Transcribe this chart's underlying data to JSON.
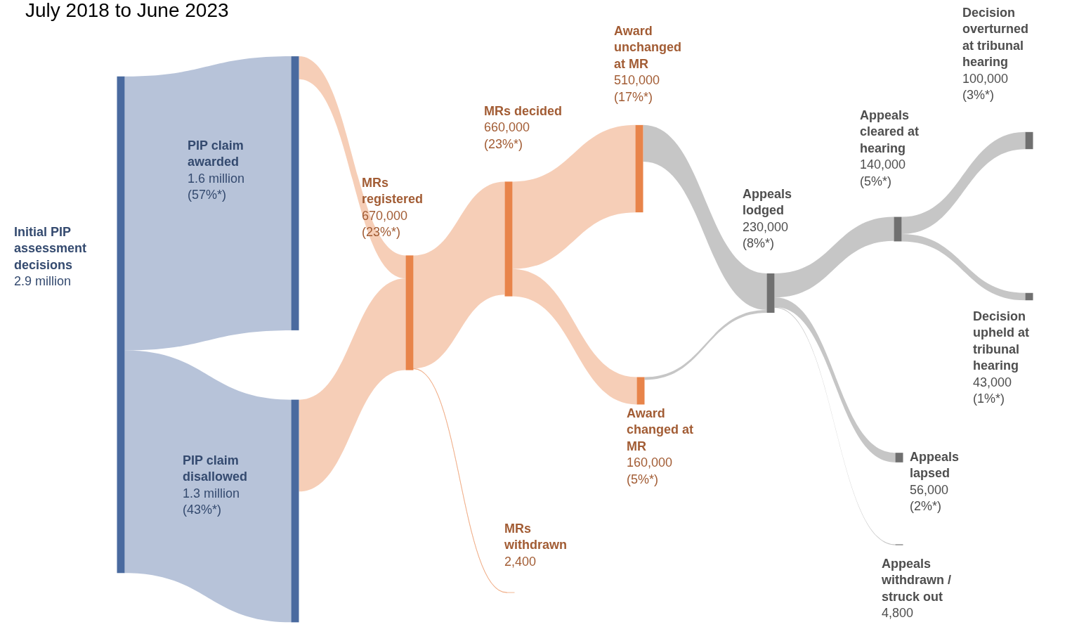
{
  "chart_data": {
    "type": "other",
    "title": "July 2018 to June 2023",
    "categories": [
      "Initial PIP assessment decisions",
      "PIP claim awarded",
      "PIP claim disallowed",
      "MRs registered",
      "MRs decided",
      "MRs withdrawn",
      "Award unchanged at MR",
      "Award changed at MR",
      "Appeals lodged",
      "Appeals cleared at hearing",
      "Appeals lapsed",
      "Appeals withdrawn / struck out",
      "Decision overturned at tribunal hearing",
      "Decision upheld at tribunal hearing"
    ],
    "values": [
      2900000,
      1600000,
      1300000,
      670000,
      660000,
      2400,
      510000,
      160000,
      230000,
      140000,
      56000,
      4800,
      100000,
      43000
    ],
    "value_labels": [
      "2.9 million",
      "1.6 million (57%*)",
      "1.3 million (43%*)",
      "670,000 (23%*)",
      "660,000 (23%*)",
      "2,400",
      "510,000 (17%*)",
      "160,000 (5%*)",
      "230,000 (8%*)",
      "140,000 (5%*)",
      "56,000 (2%*)",
      "4,800",
      "100,000 (3%*)",
      "43,000 (1%*)"
    ],
    "colors": [
      "#4a6a9f",
      "#4a6a9f",
      "#4a6a9f",
      "#e8844a",
      "#e8844a",
      "#e8844a",
      "#e8844a",
      "#e8844a",
      "#707070",
      "#707070",
      "#707070",
      "#707070",
      "#707070",
      "#707070"
    ]
  }
}
